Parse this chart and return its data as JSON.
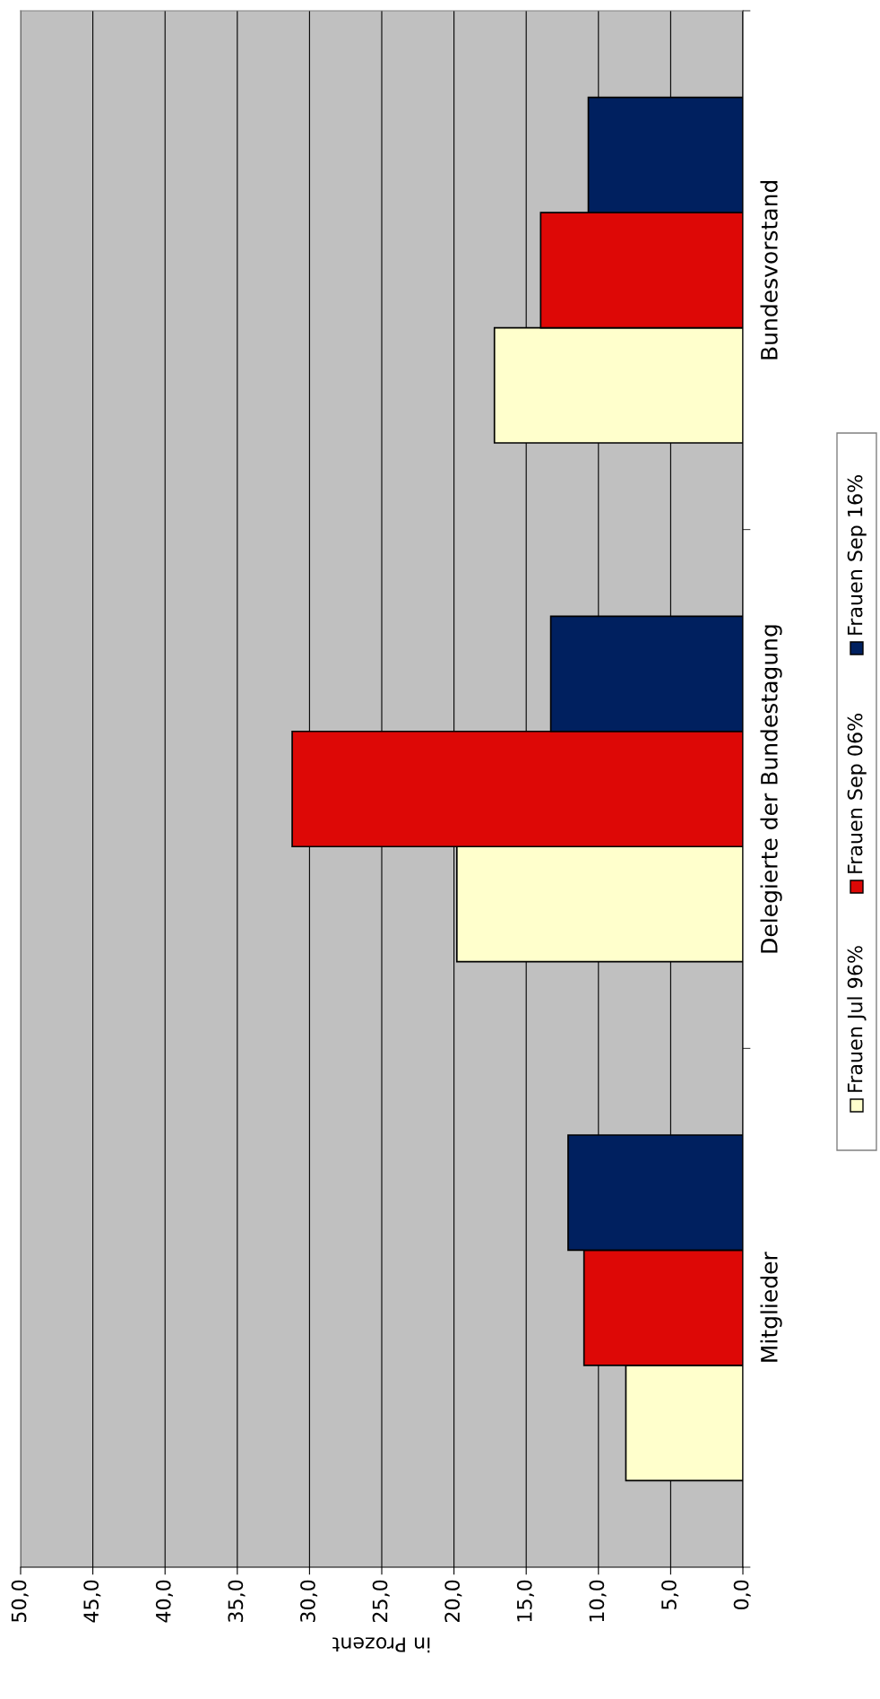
{
  "chart_data": {
    "type": "bar",
    "orientation": "horizontal",
    "xlabel": "in Prozent",
    "categories": [
      "Bundesvorstand",
      "Delegierte der Bundestagung",
      "Mitglieder"
    ],
    "series": [
      {
        "name": "Frauen Jul 96%",
        "color": "#ffffcc",
        "values": [
          17.2,
          19.8,
          8.1
        ]
      },
      {
        "name": "Frauen Sep 06%",
        "color": "#dd0806",
        "values": [
          14.0,
          31.2,
          11.0
        ]
      },
      {
        "name": "Frauen Sep 16%",
        "color": "#00205f",
        "values": [
          10.7,
          13.3,
          12.1
        ]
      }
    ],
    "xlim": [
      50,
      0
    ],
    "xticks": [
      {
        "value": 50,
        "label": "50,0"
      },
      {
        "value": 45,
        "label": "45,0"
      },
      {
        "value": 40,
        "label": "40,0"
      },
      {
        "value": 35,
        "label": "35,0"
      },
      {
        "value": 30,
        "label": "30,0"
      },
      {
        "value": 25,
        "label": "25,0"
      },
      {
        "value": 20,
        "label": "20,0"
      },
      {
        "value": 15,
        "label": "15,0"
      },
      {
        "value": 10,
        "label": "10,0"
      },
      {
        "value": 5,
        "label": "5,0"
      },
      {
        "value": 0,
        "label": "0,0"
      }
    ],
    "grid": "x",
    "legend": "right"
  }
}
